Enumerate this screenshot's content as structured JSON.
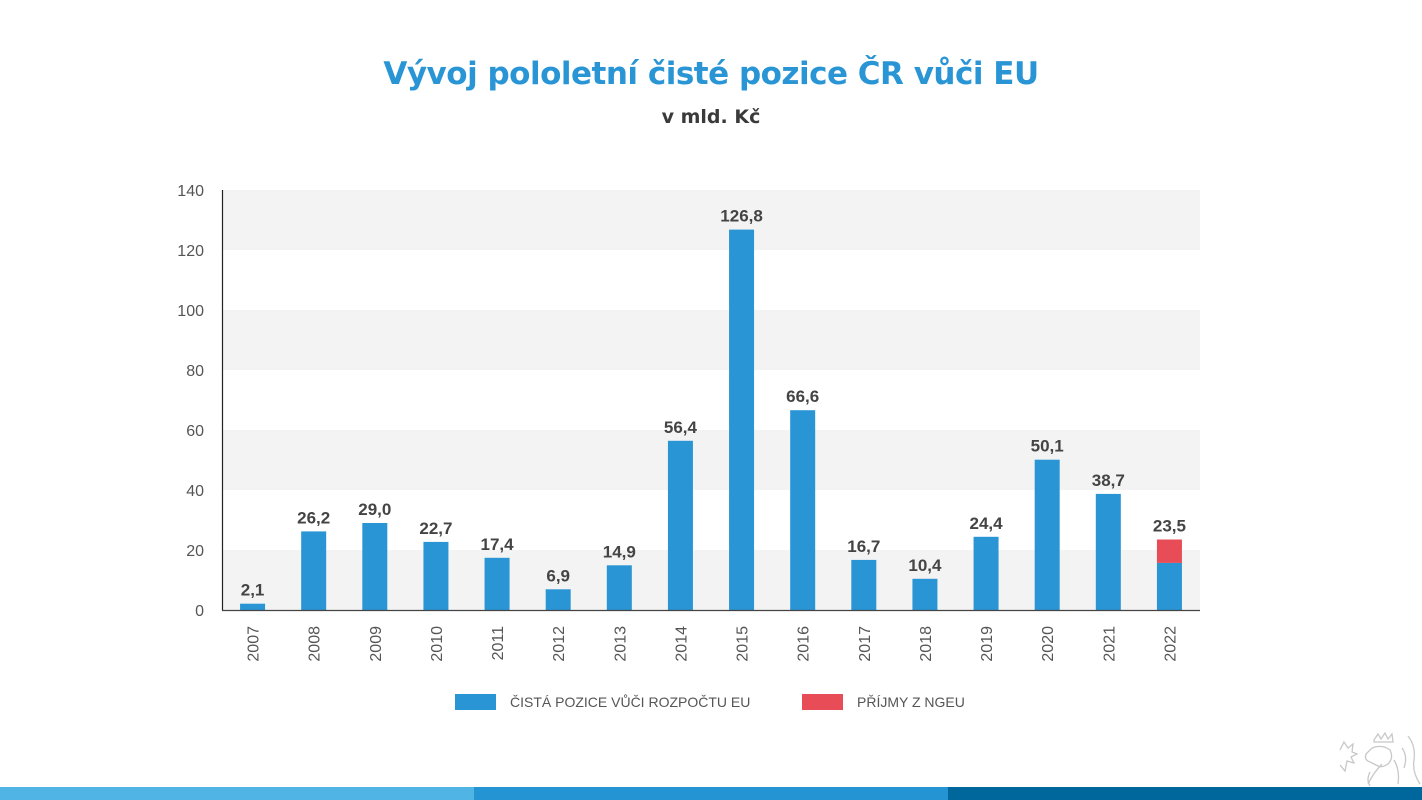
{
  "header": {
    "title": "Vývoj pololetní čisté pozice ČR vůči EU",
    "subtitle": "v mld. Kč"
  },
  "colors": {
    "title": "#2a95d5",
    "series_primary": "#2a95d5",
    "series_secondary": "#e84c57",
    "band": "#f3f3f3",
    "footer": [
      "#50b5e5",
      "#2494d2",
      "#00679c"
    ]
  },
  "chart_data": {
    "type": "bar",
    "stacked": true,
    "title": "Vývoj pololetní čisté pozice ČR vůči EU",
    "subtitle": "v mld. Kč",
    "xlabel": "",
    "ylabel": "",
    "ylim": [
      0,
      140
    ],
    "yticks": [
      0,
      20,
      40,
      60,
      80,
      100,
      120,
      140
    ],
    "grid": "alternating horizontal bands",
    "legend_position": "bottom",
    "categories": [
      "2007",
      "2008",
      "2009",
      "2010",
      "2011",
      "2012",
      "2013",
      "2014",
      "2015",
      "2016",
      "2017",
      "2018",
      "2019",
      "2020",
      "2021",
      "2022"
    ],
    "series": [
      {
        "name": "ČISTÁ POZICE VŮČI ROZPOČTU EU",
        "color": "#2a95d5",
        "values": [
          2.1,
          26.2,
          29.0,
          22.7,
          17.4,
          6.9,
          14.9,
          56.4,
          126.8,
          66.6,
          16.7,
          10.4,
          24.4,
          50.1,
          38.7,
          15.7
        ]
      },
      {
        "name": "PŘÍJMY Z NGEU",
        "color": "#e84c57",
        "values": [
          0,
          0,
          0,
          0,
          0,
          0,
          0,
          0,
          0,
          0,
          0,
          0,
          0,
          0,
          0,
          7.8
        ]
      }
    ],
    "data_labels": [
      "2,1",
      "26,2",
      "29,0",
      "22,7",
      "17,4",
      "6,9",
      "14,9",
      "56,4",
      "126,8",
      "66,6",
      "16,7",
      "10,4",
      "24,4",
      "50,1",
      "38,7",
      "23,5"
    ]
  }
}
